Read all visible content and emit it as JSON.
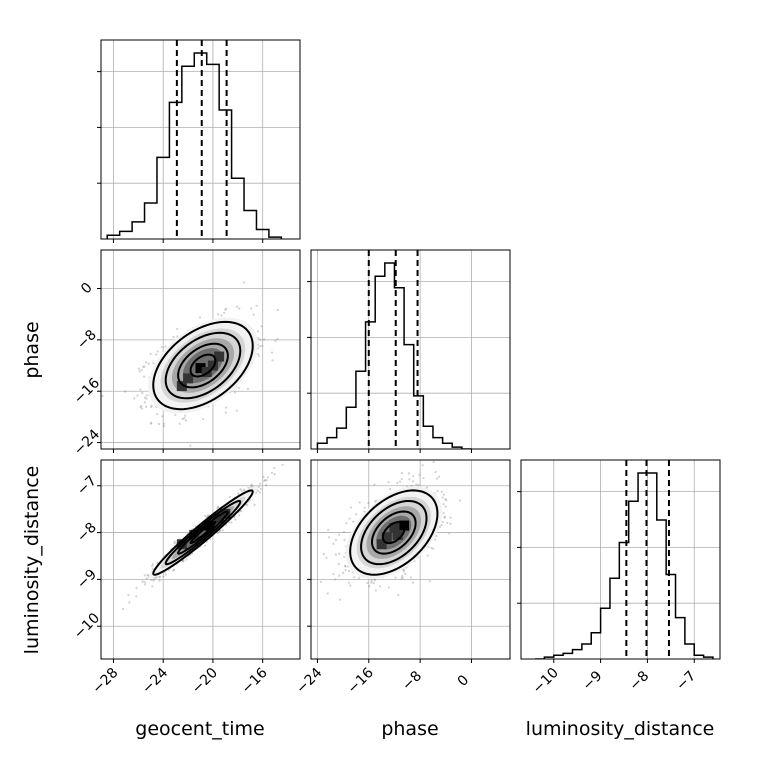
{
  "chart_data": {
    "type": "corner",
    "parameters": [
      "geocent_time",
      "phase",
      "luminosity_distance"
    ],
    "ranges": {
      "geocent_time": [
        -29.0,
        -13.0
      ],
      "phase": [
        -25.0,
        6.0
      ],
      "luminosity_distance": [
        -10.7,
        -6.45
      ]
    },
    "ticks": {
      "geocent_time": [
        -28,
        -24,
        -20,
        -16
      ],
      "phase": [
        -24,
        -16,
        -8,
        0
      ],
      "luminosity_distance": [
        -10,
        -9,
        -8,
        -7
      ]
    },
    "grid": true,
    "histograms": {
      "geocent_time": {
        "bin_edges": [
          -28.5,
          -27.5,
          -26.5,
          -25.5,
          -24.5,
          -23.5,
          -22.5,
          -21.5,
          -20.5,
          -19.5,
          -18.5,
          -17.5,
          -16.5,
          -15.5,
          -14.5
        ],
        "counts": [
          0.02,
          0.04,
          0.09,
          0.19,
          0.43,
          0.72,
          0.91,
          0.98,
          0.92,
          0.68,
          0.32,
          0.15,
          0.05,
          0.01
        ],
        "quantiles": [
          -22.9,
          -20.9,
          -18.9
        ]
      },
      "phase": {
        "bin_edges": [
          -24.0,
          -22.5,
          -21.0,
          -19.5,
          -18.0,
          -16.5,
          -15.0,
          -13.5,
          -12.0,
          -10.5,
          -9.0,
          -7.5,
          -6.0,
          -4.5,
          -3.0,
          -1.5,
          0.0
        ],
        "counts": [
          0.03,
          0.06,
          0.11,
          0.22,
          0.41,
          0.67,
          0.91,
          0.98,
          0.85,
          0.55,
          0.28,
          0.12,
          0.06,
          0.03,
          0.01,
          0.0
        ],
        "quantiles": [
          -16.0,
          -11.8,
          -8.4
        ]
      },
      "luminosity_distance": {
        "bin_edges": [
          -10.4,
          -10.2,
          -10.0,
          -9.8,
          -9.6,
          -9.4,
          -9.2,
          -9.0,
          -8.8,
          -8.6,
          -8.4,
          -8.2,
          -8.0,
          -7.8,
          -7.6,
          -7.4,
          -7.2,
          -7.0,
          -6.8,
          -6.6
        ],
        "counts": [
          0.0,
          0.01,
          0.02,
          0.03,
          0.05,
          0.08,
          0.14,
          0.27,
          0.43,
          0.62,
          0.84,
          0.99,
          0.99,
          0.74,
          0.45,
          0.22,
          0.08,
          0.02,
          0.01
        ],
        "quantiles": [
          -8.45,
          -8.02,
          -7.54
        ]
      }
    },
    "pairs": [
      {
        "x": "geocent_time",
        "y": "phase",
        "mean": [
          -20.8,
          -12.0
        ],
        "sigma": [
          2.0,
          3.4
        ],
        "rho": 0.45,
        "peak_pixels": [
          [
            -21.0,
            -12.4
          ],
          [
            -20.0,
            -12.0
          ],
          [
            -19.5,
            -10.6
          ],
          [
            -22.0,
            -14.0
          ],
          [
            -20.5,
            -13.0
          ],
          [
            -22.5,
            -15.2
          ]
        ],
        "contour_levels": [
          0.5,
          1.0,
          1.5,
          2.0
        ]
      },
      {
        "x": "geocent_time",
        "y": "luminosity_distance",
        "mean": [
          -20.8,
          -8.0
        ],
        "sigma": [
          2.0,
          0.45
        ],
        "rho": 0.97,
        "peak_pixels": [
          [
            -20.3,
            -7.85
          ],
          [
            -21.5,
            -8.05
          ],
          [
            -19.5,
            -7.7
          ],
          [
            -22.5,
            -8.25
          ],
          [
            -19.0,
            -7.6
          ]
        ],
        "contour_levels": [
          0.5,
          1.0,
          1.5,
          2.0
        ]
      },
      {
        "x": "phase",
        "y": "luminosity_distance",
        "mean": [
          -12.1,
          -8.0
        ],
        "sigma": [
          3.4,
          0.45
        ],
        "rho": 0.45,
        "peak_pixels": [
          [
            -10.5,
            -7.85
          ],
          [
            -12.0,
            -7.9
          ],
          [
            -13.2,
            -8.1
          ],
          [
            -11.5,
            -8.05
          ],
          [
            -14.0,
            -8.25
          ]
        ],
        "contour_levels": [
          0.5,
          1.0,
          1.5,
          2.0
        ]
      }
    ]
  }
}
